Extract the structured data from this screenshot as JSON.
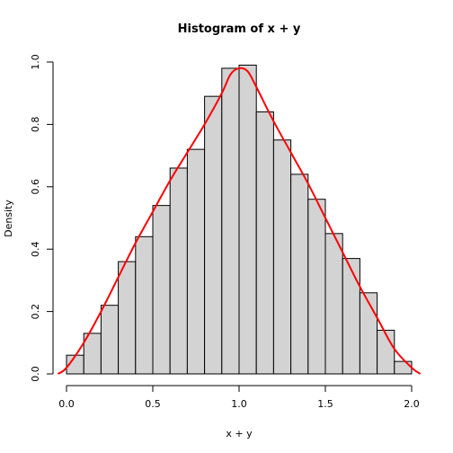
{
  "chart_data": {
    "type": "bar",
    "title": "Histogram of x + y",
    "xlabel": "x + y",
    "ylabel": "Density",
    "xlim": [
      -0.05,
      2.05
    ],
    "ylim": [
      0,
      1.0
    ],
    "x_ticks": [
      "0.0",
      "0.5",
      "1.0",
      "1.5",
      "2.0"
    ],
    "y_ticks": [
      "0.0",
      "0.2",
      "0.4",
      "0.6",
      "0.8",
      "1.0"
    ],
    "bin_edges": [
      0.0,
      0.1,
      0.2,
      0.3,
      0.4,
      0.5,
      0.6,
      0.7,
      0.8,
      0.9,
      1.0,
      1.1,
      1.2,
      1.3,
      1.4,
      1.5,
      1.6,
      1.7,
      1.8,
      1.9,
      2.0
    ],
    "values": [
      0.06,
      0.13,
      0.22,
      0.36,
      0.44,
      0.54,
      0.66,
      0.72,
      0.89,
      0.98,
      0.99,
      0.84,
      0.75,
      0.64,
      0.56,
      0.45,
      0.37,
      0.26,
      0.14,
      0.04
    ],
    "bar_color": "#d3d3d3",
    "density_color": "#ff0000",
    "density_curve": {
      "x": [
        -0.05,
        0.0,
        0.1,
        0.2,
        0.3,
        0.4,
        0.5,
        0.6,
        0.7,
        0.8,
        0.9,
        0.95,
        1.0,
        1.05,
        1.1,
        1.2,
        1.3,
        1.4,
        1.5,
        1.6,
        1.7,
        1.8,
        1.9,
        2.0,
        2.05
      ],
      "y": [
        0.0,
        0.02,
        0.1,
        0.2,
        0.31,
        0.42,
        0.52,
        0.62,
        0.71,
        0.8,
        0.9,
        0.96,
        0.98,
        0.97,
        0.92,
        0.81,
        0.71,
        0.61,
        0.5,
        0.39,
        0.28,
        0.18,
        0.08,
        0.02,
        0.0
      ]
    },
    "grid": false,
    "legend": "none"
  }
}
